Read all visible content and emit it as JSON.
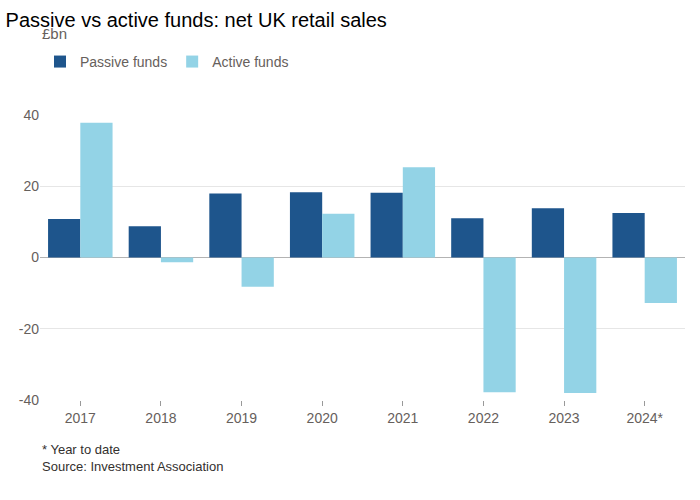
{
  "chart_data": {
    "type": "bar",
    "title": "Passive vs active funds: net UK retail sales",
    "subtitle": "£bn",
    "footnote": "* Year to date",
    "source": "Source: Investment Association",
    "categories": [
      "2017",
      "2018",
      "2019",
      "2020",
      "2021",
      "2022",
      "2023",
      "2024*"
    ],
    "series": [
      {
        "name": "Passive funds",
        "color": "#1e558c",
        "values": [
          10.8,
          8.8,
          18.0,
          18.3,
          18.2,
          11.0,
          13.8,
          12.5
        ]
      },
      {
        "name": "Active funds",
        "color": "#93d3e6",
        "values": [
          37.8,
          -1.3,
          -8.2,
          12.3,
          25.3,
          -37.8,
          -38.0,
          -12.8
        ]
      }
    ],
    "ylim": [
      -40,
      40
    ],
    "yticks": [
      -40,
      -20,
      0,
      20,
      40
    ],
    "grid": true,
    "legend": "top-left"
  }
}
